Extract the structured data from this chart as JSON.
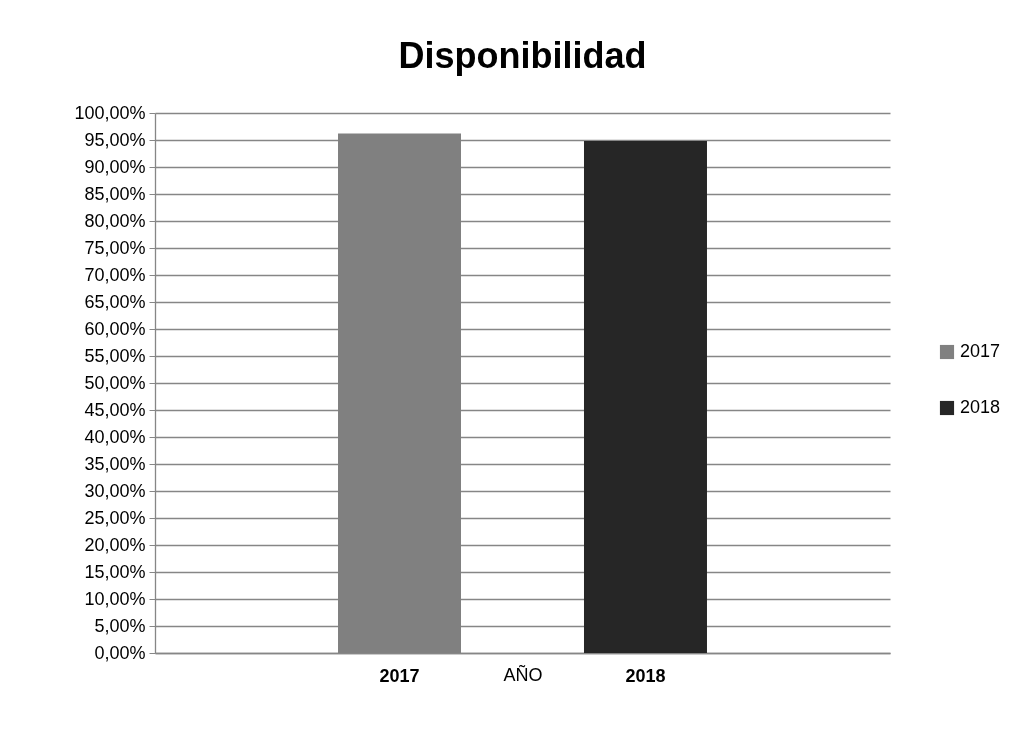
{
  "chart_data": {
    "type": "bar",
    "title": "Disponibilidad",
    "xlabel": "AÑO",
    "categories": [
      "2017",
      "2018"
    ],
    "series": [
      {
        "name": "2017",
        "color": "#808080",
        "values": [
          96.2,
          null
        ]
      },
      {
        "name": "2018",
        "color": "#262626",
        "values": [
          null,
          94.8
        ]
      }
    ],
    "ylim": [
      0,
      100
    ],
    "yticks": [
      {
        "value": 0,
        "label": "0,00%"
      },
      {
        "value": 5,
        "label": "5,00%"
      },
      {
        "value": 10,
        "label": "10,00%"
      },
      {
        "value": 15,
        "label": "15,00%"
      },
      {
        "value": 20,
        "label": "20,00%"
      },
      {
        "value": 25,
        "label": "25,00%"
      },
      {
        "value": 30,
        "label": "30,00%"
      },
      {
        "value": 35,
        "label": "35,00%"
      },
      {
        "value": 40,
        "label": "40,00%"
      },
      {
        "value": 45,
        "label": "45,00%"
      },
      {
        "value": 50,
        "label": "50,00%"
      },
      {
        "value": 55,
        "label": "55,00%"
      },
      {
        "value": 60,
        "label": "60,00%"
      },
      {
        "value": 65,
        "label": "65,00%"
      },
      {
        "value": 70,
        "label": "70,00%"
      },
      {
        "value": 75,
        "label": "75,00%"
      },
      {
        "value": 80,
        "label": "80,00%"
      },
      {
        "value": 85,
        "label": "85,00%"
      },
      {
        "value": 90,
        "label": "90,00%"
      },
      {
        "value": 95,
        "label": "95,00%"
      },
      {
        "value": 100,
        "label": "100,00%"
      }
    ],
    "grid": "y",
    "legend": "right"
  }
}
